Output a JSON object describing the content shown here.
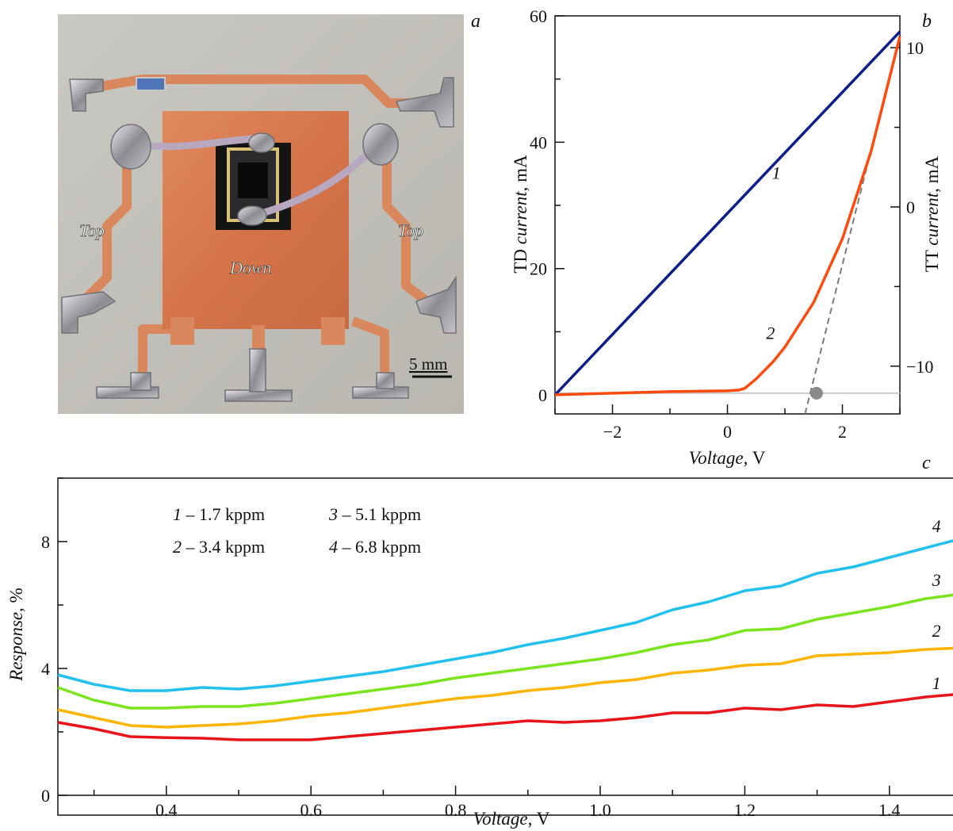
{
  "panels": {
    "a": {
      "letter": "a",
      "labels": {
        "top_left": "Top",
        "top_right": "Top",
        "down": "Down"
      },
      "scale_bar": "5 mm"
    },
    "b": {
      "letter": "b"
    },
    "c": {
      "letter": "c"
    }
  },
  "chart_data": [
    {
      "panel": "b",
      "type": "line",
      "xlabel": {
        "italic": "Voltage",
        "unit": ", V"
      },
      "ylabel_left": {
        "prefix": "TD ",
        "italic": "current",
        "unit": ", mA"
      },
      "ylabel_right": {
        "prefix": "TT ",
        "italic": "current",
        "unit": ", mA"
      },
      "xlim": [
        -3,
        3
      ],
      "ylim_left": [
        -3,
        60
      ],
      "ylim_right": [
        -13,
        12
      ],
      "xticks": [
        -2,
        0,
        2
      ],
      "xtick_labels": [
        "−2",
        "0",
        "2"
      ],
      "yticks_left": [
        0,
        20,
        40,
        60
      ],
      "yticks_right": [
        -10,
        0,
        10
      ],
      "ytick_labels_right": [
        "−10",
        "0",
        "10"
      ],
      "series": [
        {
          "name": "1",
          "axis": "left",
          "color": "#0d1e8c",
          "x": [
            -3,
            3
          ],
          "y": [
            0,
            57.5
          ]
        },
        {
          "name": "2",
          "axis": "right",
          "color": "#ff4a0d",
          "x": [
            -3,
            -2,
            -1,
            0,
            0.2,
            0.3,
            0.5,
            0.8,
            1.0,
            1.5,
            2.0,
            2.5,
            3.0
          ],
          "y": [
            -11.8,
            -11.7,
            -11.6,
            -11.55,
            -11.5,
            -11.4,
            -10.8,
            -9.7,
            -8.8,
            -6.0,
            -2.0,
            3.5,
            10.7
          ]
        }
      ],
      "tangent": {
        "color": "#7a7a7a",
        "x": [
          1.35,
          3.0
        ],
        "y": [
          -13,
          10.8
        ]
      },
      "baseline_right": -11.7,
      "marker": {
        "x": 1.55,
        "y": -11.7,
        "color": "#8a8a8a"
      },
      "annotations": [
        {
          "text": "1",
          "x": 0.85,
          "y": 34.2,
          "axis": "left"
        },
        {
          "text": "2",
          "x": 0.75,
          "y": -8.3,
          "axis": "right"
        }
      ]
    },
    {
      "panel": "c",
      "type": "line",
      "xlabel": {
        "italic": "Voltage",
        "unit": ", V"
      },
      "ylabel": {
        "italic": "Response",
        "unit": ", %"
      },
      "xlim": [
        0.25,
        1.5
      ],
      "ylim": [
        0,
        10
      ],
      "xticks": [
        0.4,
        0.6,
        0.8,
        1.0,
        1.2,
        1.4
      ],
      "xtick_labels": [
        "0.4",
        "0.6",
        "0.8",
        "1.0",
        "1.2",
        "1.4"
      ],
      "yticks": [
        0,
        4,
        8
      ],
      "ytick_labels": [
        "0",
        "4",
        "8"
      ],
      "legend": [
        {
          "num": "1",
          "text": " – 1.7 kppm"
        },
        {
          "num": "2",
          "text": " – 3.4 kppm"
        },
        {
          "num": "3",
          "text": " – 5.1 kppm"
        },
        {
          "num": "4",
          "text": " – 6.8 kppm"
        }
      ],
      "x": [
        0.25,
        0.3,
        0.35,
        0.4,
        0.45,
        0.5,
        0.55,
        0.6,
        0.65,
        0.7,
        0.75,
        0.8,
        0.85,
        0.9,
        0.95,
        1.0,
        1.05,
        1.1,
        1.15,
        1.2,
        1.25,
        1.3,
        1.35,
        1.4,
        1.45,
        1.5
      ],
      "series": [
        {
          "name": "1",
          "color": "#e8141a",
          "values": [
            2.3,
            2.1,
            1.85,
            1.82,
            1.8,
            1.75,
            1.75,
            1.75,
            1.85,
            1.95,
            2.05,
            2.15,
            2.25,
            2.35,
            2.3,
            2.35,
            2.45,
            2.6,
            2.6,
            2.75,
            2.7,
            2.85,
            2.8,
            2.95,
            3.1,
            3.2
          ]
        },
        {
          "name": "2",
          "color": "#ffb400",
          "values": [
            2.7,
            2.45,
            2.2,
            2.15,
            2.2,
            2.25,
            2.35,
            2.5,
            2.6,
            2.75,
            2.9,
            3.05,
            3.15,
            3.3,
            3.4,
            3.55,
            3.65,
            3.85,
            3.95,
            4.1,
            4.15,
            4.4,
            4.45,
            4.5,
            4.6,
            4.65
          ]
        },
        {
          "name": "3",
          "color": "#7ae51e",
          "values": [
            3.4,
            3.0,
            2.75,
            2.75,
            2.8,
            2.8,
            2.9,
            3.05,
            3.2,
            3.35,
            3.5,
            3.7,
            3.85,
            4.0,
            4.15,
            4.3,
            4.5,
            4.75,
            4.9,
            5.2,
            5.25,
            5.55,
            5.75,
            5.95,
            6.2,
            6.35
          ]
        },
        {
          "name": "4",
          "color": "#22c0ee",
          "values": [
            3.8,
            3.5,
            3.3,
            3.3,
            3.4,
            3.35,
            3.45,
            3.6,
            3.75,
            3.9,
            4.1,
            4.3,
            4.5,
            4.75,
            4.95,
            5.2,
            5.45,
            5.85,
            6.1,
            6.45,
            6.6,
            7.0,
            7.2,
            7.5,
            7.8,
            8.1
          ]
        }
      ],
      "annotations": [
        {
          "text": "4",
          "x": 1.465,
          "y": 8.3
        },
        {
          "text": "3",
          "x": 1.465,
          "y": 6.6
        },
        {
          "text": "2",
          "x": 1.465,
          "y": 5.0
        },
        {
          "text": "1",
          "x": 1.465,
          "y": 3.35
        }
      ]
    }
  ]
}
